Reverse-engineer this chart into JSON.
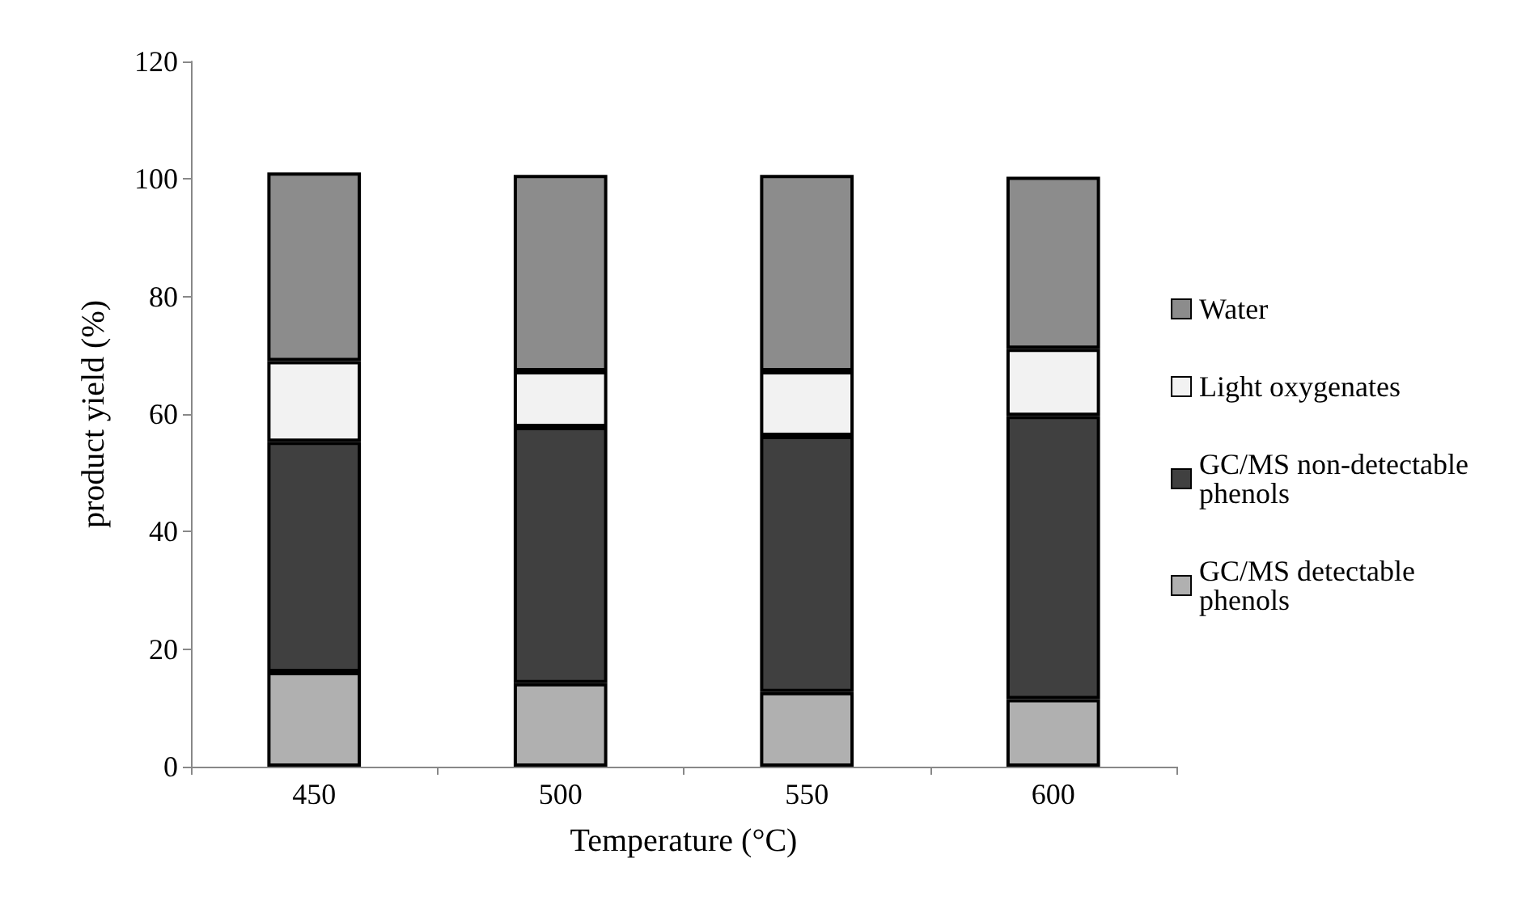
{
  "chart_data": {
    "type": "bar",
    "stacked": true,
    "xlabel": "Temperature (°C)",
    "ylabel": "product yield (%)",
    "categories": [
      "450",
      "500",
      "550",
      "600"
    ],
    "series": [
      {
        "name": "GC/MS detectable phenols",
        "color": "#b0b0b0",
        "values": [
          16.1,
          14.2,
          12.7,
          11.5
        ]
      },
      {
        "name": "GC/MS non-detectable phenols",
        "color": "#404040",
        "values": [
          39.2,
          43.6,
          43.6,
          48.2
        ]
      },
      {
        "name": "Light oxygenates",
        "color": "#f2f2f2",
        "values": [
          13.7,
          9.5,
          11.0,
          11.4
        ]
      },
      {
        "name": "Water",
        "color": "#8c8c8c",
        "values": [
          32.1,
          33.4,
          33.4,
          29.3
        ]
      }
    ],
    "ylim": [
      0,
      120
    ],
    "yticks": [
      0,
      20,
      40,
      60,
      80,
      100,
      120
    ],
    "grid": false,
    "legend": "right"
  }
}
